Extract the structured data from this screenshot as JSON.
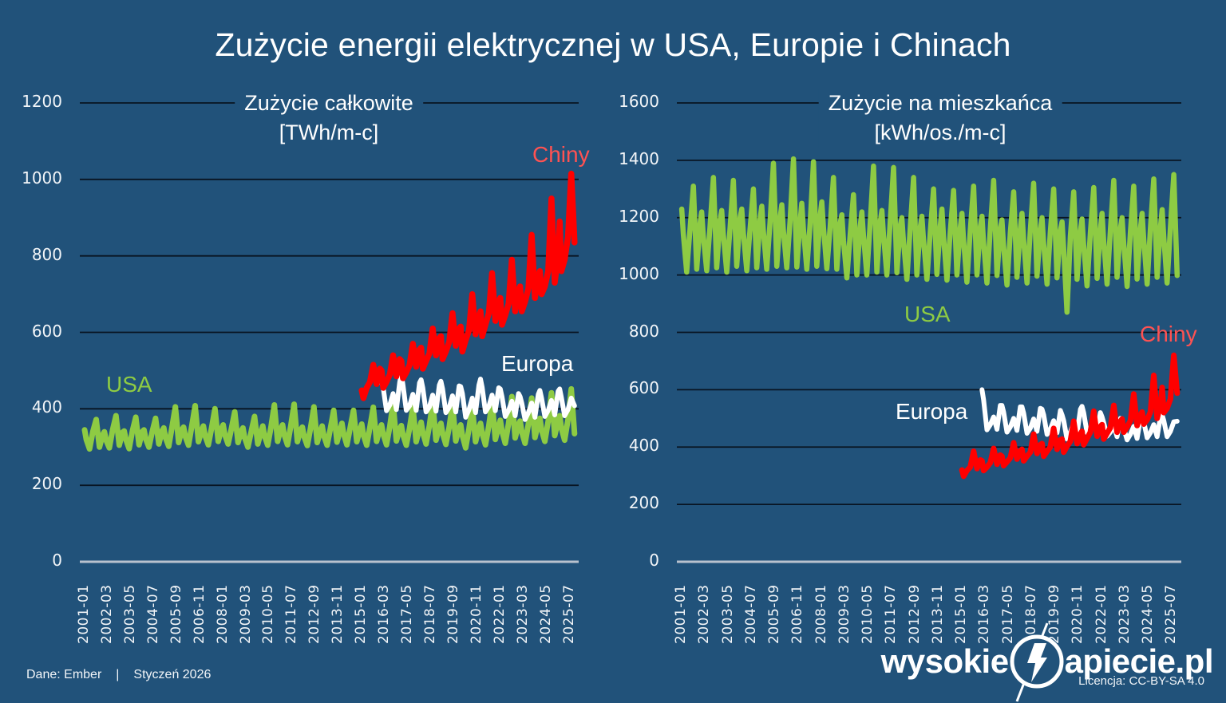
{
  "title": "Zużycie energii elektrycznej w USA, Europie i Chinach",
  "footer": {
    "source": "Dane: Ember",
    "separator": "|",
    "date": "Styczeń 2026",
    "license": "Licencja: CC-BY-SA 4.0"
  },
  "logo": {
    "prefix": "wysokie",
    "suffix": "apiecie.pl",
    "icon": "lightning-bolt-icon"
  },
  "colors": {
    "background": "#21527A",
    "gridline": "#081422",
    "axis_line": "#B9C2CE",
    "usa": "#8ECB43",
    "europa": "#FFFFFF",
    "chiny": "#FF0000",
    "chiny_label": "#FF5252",
    "text": "#FFFFFF"
  },
  "chart_data": [
    {
      "type": "line",
      "title_lines": [
        "Zużycie całkowite",
        "[TWh/m-c]"
      ],
      "unit": "TWh/m-c",
      "ylim": [
        0,
        1200
      ],
      "yticks": [
        0,
        200,
        400,
        600,
        800,
        1000,
        1200
      ],
      "grid": "horizontal-black",
      "legend": "inline-labels",
      "xtick_spacing_months": 14,
      "xtick_labels": [
        "2001-01",
        "2002-03",
        "2003-05",
        "2004-07",
        "2005-09",
        "2006-11",
        "2008-01",
        "2009-03",
        "2010-05",
        "2011-07",
        "2012-09",
        "2013-11",
        "2015-01",
        "2016-03",
        "2017-05",
        "2018-07",
        "2019-09",
        "2020-11",
        "2022-01",
        "2023-03",
        "2024-05",
        "2025-07"
      ],
      "series": [
        {
          "name": "USA",
          "color": "#8ECB43",
          "width": 7,
          "start_year": 2001,
          "month_slots": [
            1,
            2,
            4,
            6,
            8,
            10,
            12
          ],
          "values_by_year": [
            [
              345,
              320,
              295,
              340,
              372,
              300,
              332
            ],
            [
              340,
              318,
              298,
              345,
              382,
              305,
              338
            ],
            [
              342,
              320,
              296,
              342,
              378,
              306,
              340
            ],
            [
              345,
              322,
              300,
              340,
              375,
              308,
              342
            ],
            [
              350,
              325,
              302,
              352,
              405,
              312,
              345
            ],
            [
              352,
              328,
              305,
              355,
              408,
              314,
              342
            ],
            [
              355,
              330,
              306,
              350,
              400,
              315,
              348
            ],
            [
              358,
              332,
              308,
              348,
              392,
              312,
              342
            ],
            [
              350,
              325,
              300,
              340,
              380,
              308,
              340
            ],
            [
              355,
              330,
              305,
              352,
              410,
              315,
              348
            ],
            [
              358,
              332,
              306,
              355,
              412,
              314,
              345
            ],
            [
              352,
              328,
              304,
              350,
              405,
              312,
              342
            ],
            [
              355,
              330,
              305,
              348,
              396,
              313,
              345
            ],
            [
              362,
              335,
              306,
              350,
              396,
              314,
              346
            ],
            [
              360,
              332,
              305,
              352,
              404,
              315,
              348
            ],
            [
              358,
              334,
              306,
              354,
              414,
              316,
              348
            ],
            [
              356,
              332,
              305,
              350,
              405,
              314,
              348
            ],
            [
              365,
              338,
              308,
              356,
              418,
              318,
              352
            ],
            [
              362,
              336,
              307,
              352,
              413,
              316,
              350
            ],
            [
              358,
              330,
              298,
              348,
              406,
              314,
              350
            ],
            [
              362,
              336,
              306,
              355,
              418,
              320,
              355
            ],
            [
              370,
              342,
              310,
              362,
              432,
              324,
              358
            ],
            [
              368,
              340,
              310,
              360,
              428,
              325,
              362
            ],
            [
              375,
              345,
              315,
              368,
              442,
              330,
              368
            ],
            [
              382,
              350,
              318,
              372,
              452,
              335
            ]
          ]
        },
        {
          "name": "Europa",
          "color": "#FFFFFF",
          "width": 6,
          "start_year": 2016,
          "month_slots": [
            1,
            2,
            4,
            6,
            8,
            10,
            12
          ],
          "values_by_year": [
            [
              470,
              455,
              395,
              410,
              440,
              398,
              470
            ],
            [
              490,
              462,
              396,
              408,
              438,
              396,
              468
            ],
            [
              476,
              455,
              392,
              405,
              436,
              394,
              462
            ],
            [
              472,
              452,
              390,
              404,
              434,
              392,
              460
            ],
            [
              458,
              440,
              378,
              398,
              428,
              390,
              462
            ],
            [
              478,
              456,
              392,
              406,
              436,
              395,
              455
            ],
            [
              452,
              432,
              380,
              396,
              420,
              382,
              440
            ],
            [
              432,
              415,
              372,
              390,
              415,
              378,
              438
            ],
            [
              448,
              428,
              380,
              396,
              422,
              384,
              446
            ],
            [
              452,
              430,
              382,
              398,
              428,
              408
            ]
          ]
        },
        {
          "name": "Chiny",
          "color": "#FF0000",
          "width": 7.5,
          "start_year": 2015,
          "month_slots": [
            1,
            2,
            4,
            6,
            8,
            10,
            12
          ],
          "values_by_year": [
            [
              448,
              428,
              455,
              470,
              515,
              465,
              505
            ],
            [
              500,
              455,
              470,
              490,
              540,
              485,
              530
            ],
            [
              525,
              480,
              495,
              515,
              570,
              510,
              555
            ],
            [
              560,
              505,
              525,
              545,
              610,
              540,
              585
            ],
            [
              590,
              530,
              550,
              575,
              650,
              565,
              610
            ],
            [
              615,
              550,
              580,
              605,
              700,
              595,
              640
            ],
            [
              655,
              590,
              620,
              650,
              755,
              630,
              680
            ],
            [
              690,
              620,
              645,
              675,
              790,
              655,
              710
            ],
            [
              720,
              655,
              680,
              715,
              855,
              690,
              745
            ],
            [
              760,
              700,
              720,
              760,
              950,
              730,
              800
            ],
            [
              890,
              760,
              790,
              850,
              1015,
              835
            ]
          ]
        }
      ]
    },
    {
      "type": "line",
      "title_lines": [
        "Zużycie na mieszkańca",
        "[kWh/os./m-c]"
      ],
      "unit": "kWh/os./m-c",
      "ylim": [
        0,
        1600
      ],
      "yticks": [
        0,
        200,
        400,
        600,
        800,
        1000,
        1200,
        1400,
        1600
      ],
      "grid": "horizontal-black",
      "legend": "inline-labels",
      "xtick_spacing_months": 14,
      "xtick_labels": [
        "2001-01",
        "2002-03",
        "2003-05",
        "2004-07",
        "2005-09",
        "2006-11",
        "2008-01",
        "2009-03",
        "2010-05",
        "2011-07",
        "2012-09",
        "2013-11",
        "2015-01",
        "2016-03",
        "2017-05",
        "2018-07",
        "2019-09",
        "2020-11",
        "2022-01",
        "2023-03",
        "2024-05",
        "2025-07"
      ],
      "series": [
        {
          "name": "USA",
          "color": "#8ECB43",
          "width": 6.5,
          "start_year": 2001,
          "month_slots": [
            1,
            2,
            4,
            6,
            8,
            10,
            12
          ],
          "values_by_year": [
            [
              1230,
              1140,
              1010,
              1160,
              1310,
              1020,
              1180
            ],
            [
              1220,
              1135,
              1015,
              1170,
              1340,
              1025,
              1190
            ],
            [
              1225,
              1140,
              1010,
              1165,
              1330,
              1030,
              1200
            ],
            [
              1230,
              1145,
              1015,
              1160,
              1300,
              1025,
              1195
            ],
            [
              1240,
              1150,
              1020,
              1185,
              1390,
              1030,
              1200
            ],
            [
              1245,
              1155,
              1025,
              1190,
              1405,
              1028,
              1185
            ],
            [
              1250,
              1160,
              1020,
              1180,
              1395,
              1030,
              1205
            ],
            [
              1255,
              1165,
              1022,
              1170,
              1340,
              1020,
              1180
            ],
            [
              1210,
              1120,
              990,
              1140,
              1280,
              1000,
              1170
            ],
            [
              1220,
              1135,
              1000,
              1180,
              1380,
              1010,
              1185
            ],
            [
              1225,
              1140,
              1000,
              1185,
              1375,
              1008,
              1170
            ],
            [
              1200,
              1115,
              985,
              1165,
              1340,
              1000,
              1165
            ],
            [
              1205,
              1120,
              985,
              1150,
              1300,
              1002,
              1170
            ],
            [
              1230,
              1130,
              982,
              1150,
              1295,
              1000,
              1165
            ],
            [
              1215,
              1118,
              975,
              1155,
              1310,
              1000,
              1168
            ],
            [
              1205,
              1112,
              972,
              1160,
              1330,
              998,
              1162
            ],
            [
              1192,
              1100,
              965,
              1148,
              1290,
              992,
              1160
            ],
            [
              1215,
              1122,
              972,
              1158,
              1320,
              996,
              1158
            ],
            [
              1200,
              1108,
              968,
              1150,
              1300,
              990,
              1155
            ],
            [
              1185,
              1090,
              870,
              1135,
              1290,
              985,
              1155
            ],
            [
              1195,
              1105,
              962,
              1148,
              1305,
              988,
              1158
            ],
            [
              1215,
              1118,
              968,
              1158,
              1330,
              992,
              1162
            ],
            [
              1200,
              1110,
              960,
              1152,
              1310,
              986,
              1162
            ],
            [
              1215,
              1122,
              968,
              1162,
              1335,
              992,
              1168
            ],
            [
              1228,
              1130,
              972,
              1168,
              1350,
              998
            ]
          ]
        },
        {
          "name": "Europa",
          "color": "#FFFFFF",
          "width": 6,
          "start_year": 2016,
          "month_slots": [
            1,
            2,
            4,
            6,
            8,
            10,
            12
          ],
          "values_by_year": [
            [
              600,
              565,
              460,
              478,
              505,
              462,
              545
            ],
            [
              545,
              522,
              452,
              470,
              500,
              458,
              540
            ],
            [
              540,
              518,
              448,
              466,
              498,
              455,
              535
            ],
            [
              532,
              512,
              444,
              462,
              492,
              450,
              528
            ],
            [
              512,
              492,
              428,
              452,
              485,
              448,
              532
            ],
            [
              542,
              520,
              450,
              465,
              495,
              452,
              520
            ],
            [
              505,
              485,
              438,
              452,
              478,
              436,
              500
            ],
            [
              482,
              465,
              425,
              445,
              472,
              430,
              498
            ],
            [
              505,
              488,
              432,
              450,
              478,
              436,
              505
            ],
            [
              512,
              492,
              436,
              455,
              488,
              490
            ]
          ]
        },
        {
          "name": "Chiny",
          "color": "#FF0000",
          "width": 7,
          "start_year": 2015,
          "month_slots": [
            1,
            2,
            4,
            6,
            8,
            10,
            12
          ],
          "values_by_year": [
            [
              320,
              298,
              318,
              330,
              385,
              325,
              355
            ],
            [
              352,
              318,
              330,
              345,
              395,
              340,
              372
            ],
            [
              368,
              335,
              348,
              362,
              415,
              358,
              388
            ],
            [
              392,
              352,
              368,
              382,
              445,
              378,
              408
            ],
            [
              412,
              368,
              385,
              400,
              465,
              392,
              425
            ],
            [
              428,
              382,
              402,
              420,
              490,
              412,
              445
            ],
            [
              455,
              408,
              430,
              452,
              525,
              438,
              472
            ],
            [
              478,
              428,
              448,
              468,
              545,
              452,
              490
            ],
            [
              498,
              452,
              470,
              492,
              585,
              475,
              512
            ],
            [
              522,
              480,
              495,
              522,
              650,
              500,
              548
            ],
            [
              608,
              520,
              535,
              568,
              720,
              588
            ]
          ]
        }
      ]
    }
  ]
}
